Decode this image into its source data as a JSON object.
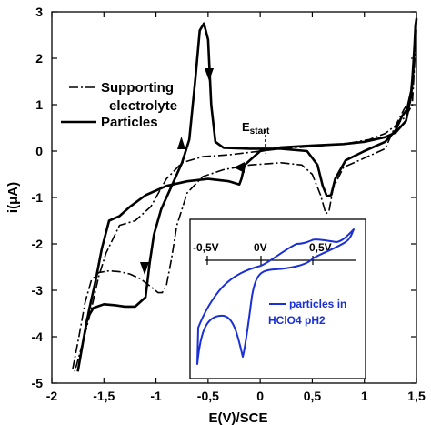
{
  "chart_data": {
    "type": "line",
    "xlabel": "E(V)/SCE",
    "ylabel": "i(μA)",
    "xlim": [
      -2,
      1.5
    ],
    "ylim": [
      -5,
      3
    ],
    "grid": false,
    "legend_position": "top-left",
    "x_ticks": [
      "-2",
      "-1,5",
      "-1",
      "-0,5",
      "0",
      "0,5",
      "1",
      "1,5"
    ],
    "x_tick_values": [
      -2,
      -1.5,
      -1,
      -0.5,
      0,
      0.5,
      1,
      1.5
    ],
    "y_ticks": [
      "3",
      "2",
      "1",
      "0",
      "-1",
      "-2",
      "-3",
      "-4",
      "-5"
    ],
    "y_tick_values": [
      3,
      2,
      1,
      0,
      -1,
      -2,
      -3,
      -4,
      -5
    ],
    "annotation_label": "E",
    "annotation_subscript": "start",
    "annotation_x": 0.05,
    "series": [
      {
        "name_lines": [
          "Supporting",
          "electrolyte"
        ],
        "style": "dash-dot",
        "color": "#000000",
        "points": [
          [
            -1.8,
            -4.7
          ],
          [
            -1.74,
            -4.0
          ],
          [
            -1.68,
            -3.25
          ],
          [
            -1.62,
            -2.78
          ],
          [
            -1.55,
            -2.62
          ],
          [
            -1.45,
            -2.58
          ],
          [
            -1.35,
            -2.6
          ],
          [
            -1.25,
            -2.65
          ],
          [
            -1.15,
            -2.75
          ],
          [
            -1.05,
            -2.92
          ],
          [
            -0.98,
            -3.05
          ],
          [
            -0.94,
            -3.05
          ],
          [
            -0.9,
            -2.9
          ],
          [
            -0.85,
            -2.3
          ],
          [
            -0.8,
            -1.6
          ],
          [
            -0.7,
            -0.9
          ],
          [
            -0.55,
            -0.55
          ],
          [
            -0.35,
            -0.4
          ],
          [
            -0.1,
            -0.3
          ],
          [
            0.2,
            -0.25
          ],
          [
            0.4,
            -0.3
          ],
          [
            0.5,
            -0.5
          ],
          [
            0.58,
            -0.95
          ],
          [
            0.63,
            -1.35
          ],
          [
            0.66,
            -1.3
          ],
          [
            0.7,
            -0.8
          ],
          [
            0.8,
            -0.35
          ],
          [
            1.0,
            -0.15
          ],
          [
            1.2,
            0.05
          ],
          [
            1.3,
            0.55
          ],
          [
            1.38,
            0.9
          ],
          [
            1.44,
            1.1
          ],
          [
            1.47,
            1.5
          ],
          [
            1.5,
            2.6
          ],
          [
            1.5,
            2.6
          ],
          [
            1.46,
            1.0
          ],
          [
            1.4,
            0.75
          ],
          [
            1.3,
            0.55
          ],
          [
            1.2,
            0.38
          ],
          [
            1.05,
            0.25
          ],
          [
            0.8,
            0.15
          ],
          [
            0.5,
            0.1
          ],
          [
            0.2,
            0.05
          ],
          [
            0.0,
            0.0
          ],
          [
            -0.3,
            -0.08
          ],
          [
            -0.55,
            -0.12
          ],
          [
            -0.75,
            -0.25
          ],
          [
            -0.9,
            -0.6
          ],
          [
            -1.05,
            -1.2
          ],
          [
            -1.2,
            -1.5
          ],
          [
            -1.35,
            -1.6
          ],
          [
            -1.48,
            -2.2
          ],
          [
            -1.55,
            -2.7
          ],
          [
            -1.62,
            -3.4
          ],
          [
            -1.7,
            -4.1
          ],
          [
            -1.78,
            -4.75
          ]
        ]
      },
      {
        "name": "Particles",
        "style": "solid",
        "color": "#000000",
        "points": [
          [
            -1.75,
            -4.75
          ],
          [
            -1.7,
            -4.1
          ],
          [
            -1.66,
            -3.6
          ],
          [
            -1.6,
            -3.38
          ],
          [
            -1.5,
            -3.3
          ],
          [
            -1.4,
            -3.32
          ],
          [
            -1.3,
            -3.35
          ],
          [
            -1.2,
            -3.35
          ],
          [
            -1.1,
            -3.15
          ],
          [
            -1.06,
            -2.4
          ],
          [
            -1.02,
            -1.8
          ],
          [
            -0.95,
            -1.25
          ],
          [
            -0.85,
            -0.75
          ],
          [
            -0.75,
            -0.25
          ],
          [
            -0.68,
            0.25
          ],
          [
            -0.62,
            1.6
          ],
          [
            -0.58,
            2.6
          ],
          [
            -0.54,
            2.75
          ],
          [
            -0.5,
            2.4
          ],
          [
            -0.47,
            1.0
          ],
          [
            -0.43,
            0.2
          ],
          [
            -0.35,
            0.07
          ],
          [
            -0.1,
            0.05
          ],
          [
            0.2,
            0.05
          ],
          [
            0.45,
            0.0
          ],
          [
            0.55,
            -0.3
          ],
          [
            0.6,
            -0.75
          ],
          [
            0.64,
            -0.97
          ],
          [
            0.68,
            -0.95
          ],
          [
            0.72,
            -0.6
          ],
          [
            0.82,
            -0.2
          ],
          [
            1.0,
            0.0
          ],
          [
            1.2,
            0.2
          ],
          [
            1.3,
            0.45
          ],
          [
            1.36,
            0.75
          ],
          [
            1.41,
            0.9
          ],
          [
            1.45,
            1.3
          ],
          [
            1.47,
            1.8
          ],
          [
            1.49,
            2.7
          ],
          [
            1.5,
            2.85
          ],
          [
            1.49,
            2.6
          ],
          [
            1.45,
            1.2
          ],
          [
            1.4,
            0.65
          ],
          [
            1.3,
            0.4
          ],
          [
            1.2,
            0.3
          ],
          [
            1.0,
            0.2
          ],
          [
            0.8,
            0.15
          ],
          [
            0.5,
            0.12
          ],
          [
            0.2,
            0.08
          ],
          [
            0.0,
            0.0
          ],
          [
            -0.15,
            -0.3
          ],
          [
            -0.18,
            -0.6
          ],
          [
            -0.2,
            -0.72
          ],
          [
            -0.3,
            -0.65
          ],
          [
            -0.5,
            -0.6
          ],
          [
            -0.7,
            -0.65
          ],
          [
            -0.9,
            -0.75
          ],
          [
            -1.1,
            -0.95
          ],
          [
            -1.25,
            -1.2
          ],
          [
            -1.35,
            -1.4
          ],
          [
            -1.45,
            -1.5
          ],
          [
            -1.52,
            -2.1
          ],
          [
            -1.58,
            -2.8
          ],
          [
            -1.64,
            -3.4
          ],
          [
            -1.7,
            -4.1
          ],
          [
            -1.75,
            -4.75
          ]
        ]
      }
    ],
    "inset": {
      "x_ticks": [
        "-0,5V",
        "0V",
        "0,5V"
      ],
      "legend_lines": [
        "particles in",
        "HClO4 pH2"
      ],
      "color": "#1a2fd6"
    }
  }
}
